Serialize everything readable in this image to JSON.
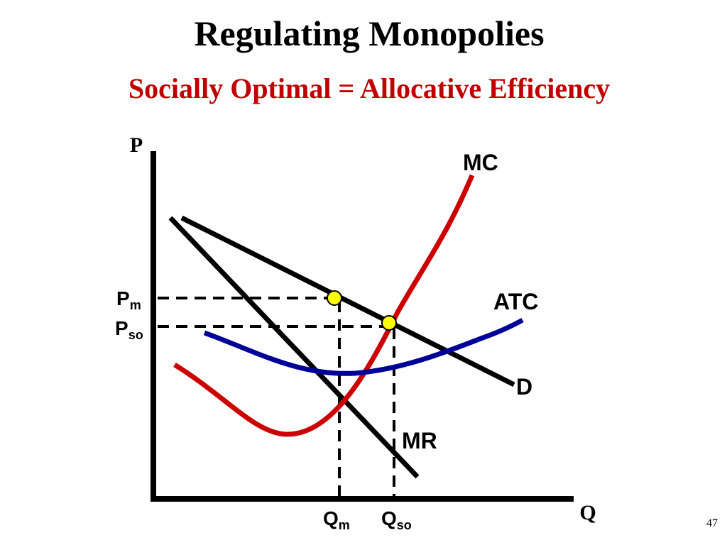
{
  "title": "Regulating Monopolies",
  "subtitle": "Socially Optimal = Allocative Efficiency",
  "axes": {
    "y_label": "P",
    "x_label": "Q"
  },
  "curves": {
    "mc": "MC",
    "atc": "ATC",
    "demand": "D",
    "mr": "MR"
  },
  "price_labels": [
    {
      "main": "P",
      "sub": "m"
    },
    {
      "main": "P",
      "sub": "so"
    }
  ],
  "quantity_labels": [
    {
      "main": "Q",
      "sub": "m"
    },
    {
      "main": "Q",
      "sub": "so"
    }
  ],
  "page_number": "47"
}
